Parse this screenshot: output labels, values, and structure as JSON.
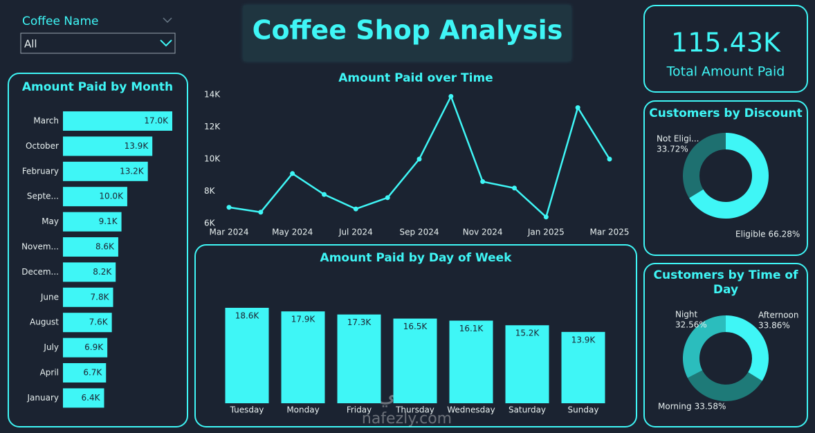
{
  "filter": {
    "label": "Coffee Name",
    "selected": "All"
  },
  "header": {
    "title": "Coffee Shop Analysis"
  },
  "kpi": {
    "value": 115430,
    "value_label": "115.43K",
    "label": "Total Amount Paid"
  },
  "watermark": {
    "arabic": "نفذلي",
    "latin": "nafezly.com"
  },
  "chart_data": [
    {
      "type": "bar",
      "orientation": "horizontal",
      "title": "Amount Paid by Month",
      "color": "#3ff6f6",
      "categories": [
        "March",
        "October",
        "February",
        "Septe...",
        "May",
        "Novem...",
        "Decem...",
        "June",
        "August",
        "July",
        "April",
        "January"
      ],
      "values": [
        17000,
        13900,
        13200,
        10000,
        9100,
        8600,
        8200,
        7800,
        7600,
        6900,
        6700,
        6400
      ],
      "value_labels": [
        "17.0K",
        "13.9K",
        "13.2K",
        "10.0K",
        "9.1K",
        "8.6K",
        "8.2K",
        "7.8K",
        "7.6K",
        "6.9K",
        "6.7K",
        "6.4K"
      ]
    },
    {
      "type": "line",
      "title": "Amount Paid over Time",
      "color": "#3ff6f6",
      "grid": false,
      "categories": [
        "Mar 2024",
        null,
        "May 2024",
        null,
        "Jul 2024",
        null,
        "Sep 2024",
        null,
        "Nov 2024",
        null,
        "Jan 2025",
        null,
        "Mar 2025"
      ],
      "values": [
        7000,
        6700,
        9100,
        7800,
        6900,
        7600,
        10000,
        13900,
        8600,
        8200,
        6400,
        13200,
        10000
      ],
      "ylim": [
        6000,
        14000
      ],
      "yticks": [
        {
          "value": 6000,
          "label": "6K"
        },
        {
          "value": 8000,
          "label": "8K"
        },
        {
          "value": 10000,
          "label": "10K"
        },
        {
          "value": 12000,
          "label": "12K"
        },
        {
          "value": 14000,
          "label": "14K"
        }
      ]
    },
    {
      "type": "bar",
      "orientation": "vertical",
      "title": "Amount Paid by Day of Week",
      "color": "#3ff6f6",
      "categories": [
        "Tuesday",
        "Monday",
        "Friday",
        "Thursday",
        "Wednesday",
        "Saturday",
        "Sunday"
      ],
      "values": [
        18600,
        17900,
        17300,
        16500,
        16100,
        15200,
        13900
      ],
      "value_labels": [
        "18.6K",
        "17.9K",
        "17.3K",
        "16.5K",
        "16.1K",
        "15.2K",
        "13.9K"
      ]
    },
    {
      "type": "pie",
      "donut": true,
      "title": "Customers by Discount",
      "categories": [
        "Eligible",
        "Not Eligi..."
      ],
      "values": [
        66.28,
        33.72
      ],
      "value_labels": [
        "66.28%",
        "33.72%"
      ],
      "colors": [
        "#3ff6f6",
        "#1e7070"
      ]
    },
    {
      "type": "pie",
      "donut": true,
      "title": "Customers by Time of Day",
      "categories": [
        "Afternoon",
        "Morning",
        "Night"
      ],
      "values": [
        33.86,
        33.58,
        32.56
      ],
      "value_labels": [
        "33.86%",
        "33.58%",
        "32.56%"
      ],
      "colors": [
        "#3ff6f6",
        "#1e7a78",
        "#2bbdbd"
      ]
    }
  ]
}
